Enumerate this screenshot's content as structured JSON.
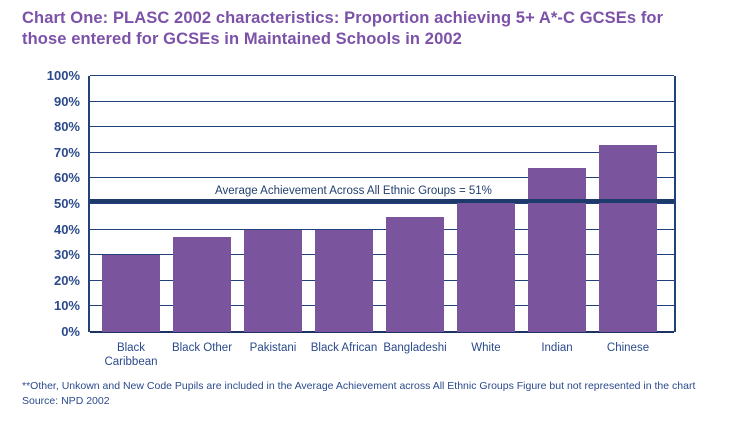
{
  "title": "Chart One: PLASC 2002 characteristics: Proportion achieving 5+ A*-C GCSEs for those entered for GCSEs in Maintained Schools in 2002",
  "chart_data": {
    "type": "bar",
    "categories": [
      "Black Caribbean",
      "Black Other",
      "Pakistani",
      "Black African",
      "Bangladeshi",
      "White",
      "Indian",
      "Chinese"
    ],
    "values": [
      30,
      37,
      40,
      40,
      45,
      51,
      64,
      73
    ],
    "title": "Chart One: PLASC 2002 characteristics: Proportion achieving 5+ A*-C GCSEs for those entered for GCSEs in Maintained Schools in 2002",
    "xlabel": "",
    "ylabel": "",
    "ylim": [
      0,
      100
    ],
    "ytick_step": 10,
    "ytick_suffix": "%",
    "grid": true,
    "legend": "none",
    "reference_line": {
      "value": 51,
      "label": "Average Achievement Across All Ethnic Groups = 51%"
    },
    "colors": {
      "bar": "#7A549C",
      "title": "#7C52A8",
      "axis_text": "#2B4A8C",
      "gridline": "#22407A",
      "reference_line": "#1E3A6B"
    }
  },
  "footnotes": {
    "note": "**Other, Unkown and New Code Pupils are included in the Average Achievement across All Ethnic Groups Figure but not represented in the chart",
    "source": "Source: NPD 2002"
  }
}
